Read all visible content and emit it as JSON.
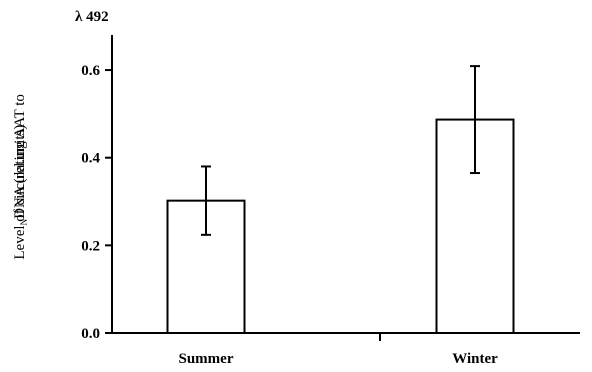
{
  "chart_data": {
    "type": "bar",
    "title": "",
    "top_left_label": "λ 492",
    "xlabel": "",
    "ylabel": "Level of circulating AAT to",
    "ylabel_line2": {
      "subscript": "N",
      "text": "DNA (rel.units)"
    },
    "categories": [
      "Summer",
      "Winter"
    ],
    "values": [
      0.302,
      0.487
    ],
    "errors": [
      0.078,
      0.122
    ],
    "ylim": [
      0,
      0.68
    ],
    "yticks": [
      0.0,
      0.2,
      0.4,
      0.6
    ],
    "ytick_labels": [
      "0.0",
      "0.2",
      "0.4",
      "0.6"
    ],
    "grid": false,
    "legend": "none",
    "bar_fill": "#ffffff",
    "bar_stroke": "#000000"
  }
}
